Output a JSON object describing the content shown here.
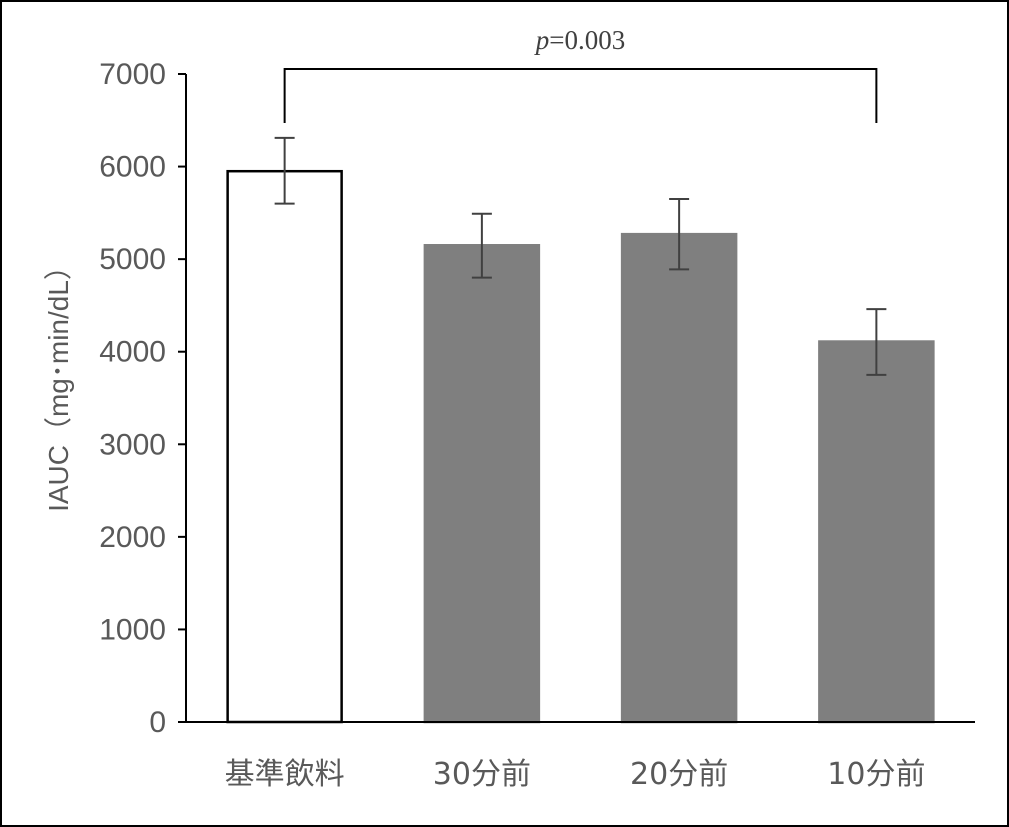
{
  "chart_data": {
    "type": "bar",
    "categories": [
      "基準飲料",
      "30分前",
      "20分前",
      "10分前"
    ],
    "values": [
      5950,
      5150,
      5270,
      4110
    ],
    "error_low": [
      5600,
      4800,
      4890,
      3750
    ],
    "error_high": [
      6310,
      5490,
      5650,
      4460
    ],
    "bar_colors": [
      "#ffffff",
      "#7f7f7f",
      "#7f7f7f",
      "#7f7f7f"
    ],
    "bar_edge_colors": [
      "#000000",
      "#7f7f7f",
      "#7f7f7f",
      "#7f7f7f"
    ],
    "ylabel": "IAUC（mg･min/dL）",
    "ylim": [
      0,
      7000
    ],
    "yticks": [
      0,
      1000,
      2000,
      3000,
      4000,
      5000,
      6000,
      7000
    ],
    "grid": false,
    "annotation": {
      "p_symbol": "p",
      "p_text": "=0.003",
      "from_category": 0,
      "to_category": 3
    },
    "colors": {
      "axis": "#000000",
      "text": "#595959",
      "error_bar": "#404040"
    }
  }
}
